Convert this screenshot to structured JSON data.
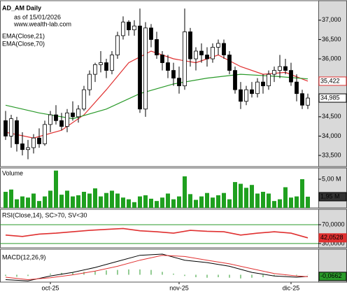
{
  "chart_data": [
    {
      "type": "candlestick",
      "title": "AD_AM Daily",
      "subtitle": "as of 15/01/2026",
      "source": "www.wealth-lab.com",
      "xlim": [
        -1,
        55.875
      ],
      "ylim": [
        33210,
        37505
      ],
      "xticks": [
        {
          "value": 8,
          "label": "oct-25"
        },
        {
          "value": 31,
          "label": "nov-25"
        },
        {
          "value": 51,
          "label": "dic-25"
        }
      ],
      "yticks": [
        {
          "value": 37000,
          "label": "37,000"
        },
        {
          "value": 36500,
          "label": "36,500"
        },
        {
          "value": 36000,
          "label": "36,000"
        },
        {
          "value": 34500,
          "label": "34,500"
        },
        {
          "value": 34000,
          "label": "34,000"
        },
        {
          "value": 33500,
          "label": "33,500"
        }
      ],
      "open": [
        34400,
        34000,
        34400,
        33800,
        33650,
        33700,
        33950,
        33800,
        34300,
        34550,
        34400,
        34250,
        34600,
        34500,
        34700,
        35200,
        35600,
        35850,
        35900,
        35700,
        36100,
        36600,
        36950,
        36750,
        36850,
        34700,
        36800,
        36500,
        36100,
        35900,
        35700,
        35500,
        35300,
        36700,
        36000,
        36200,
        36100,
        36000,
        36300,
        36400,
        36100,
        35700,
        35200,
        34900,
        35200,
        35100,
        35400,
        35300,
        35600,
        35700,
        35800,
        35700,
        35400,
        35100,
        34800
      ],
      "high": [
        34650,
        34550,
        34500,
        34100,
        33900,
        34050,
        34200,
        34400,
        34650,
        34800,
        34600,
        34700,
        34900,
        34800,
        35300,
        35700,
        35900,
        36200,
        36000,
        36200,
        36700,
        37100,
        37000,
        37000,
        37300,
        36950,
        36900,
        36700,
        36200,
        36100,
        35900,
        35800,
        37300,
        36800,
        36300,
        36400,
        36300,
        36400,
        36500,
        36500,
        36200,
        35800,
        35400,
        35300,
        35400,
        35500,
        35600,
        35700,
        35800,
        36100,
        36000,
        35900,
        35600,
        35200,
        35100
      ],
      "low": [
        33900,
        33700,
        33600,
        33500,
        33400,
        33550,
        33700,
        33750,
        34100,
        34300,
        34150,
        34100,
        34400,
        34350,
        34650,
        35050,
        35400,
        35650,
        35500,
        35600,
        36000,
        36500,
        36600,
        36600,
        34600,
        34500,
        36300,
        36000,
        35700,
        35500,
        35300,
        35100,
        35200,
        35800,
        35700,
        35900,
        35800,
        35900,
        36100,
        36000,
        35600,
        35100,
        34700,
        34800,
        35000,
        35000,
        35100,
        35200,
        35400,
        35500,
        35600,
        35300,
        34900,
        34700,
        34700
      ],
      "close": [
        34000,
        34450,
        33800,
        33650,
        33700,
        33950,
        33800,
        34300,
        34550,
        34400,
        34250,
        34600,
        34500,
        34700,
        35200,
        35600,
        35850,
        35900,
        35700,
        36100,
        36600,
        36950,
        36750,
        36850,
        34700,
        36800,
        36500,
        36100,
        35900,
        35700,
        35500,
        35300,
        36700,
        36000,
        36200,
        36100,
        36000,
        36300,
        36400,
        36100,
        35700,
        35200,
        34900,
        35200,
        35100,
        35400,
        35300,
        35600,
        35700,
        35800,
        35700,
        35400,
        35100,
        34800,
        34985
      ],
      "close_label": "34,985",
      "series": [
        {
          "name": "EMA(Close,21)",
          "color": "#e03030",
          "x": [
            0,
            5,
            10,
            14,
            18,
            22,
            26,
            30,
            34,
            38,
            42,
            46,
            50,
            54
          ],
          "values": [
            34100,
            33950,
            34150,
            34550,
            35200,
            35900,
            36200,
            36000,
            35900,
            36100,
            35800,
            35600,
            35650,
            35422
          ],
          "last_label": "35,422"
        },
        {
          "name": "EMA(Close,70)",
          "color": "#2a9a2a",
          "x": [
            0,
            6,
            12,
            18,
            24,
            30,
            36,
            42,
            48,
            54
          ],
          "values": [
            34800,
            34600,
            34450,
            34700,
            35100,
            35350,
            35500,
            35600,
            35550,
            35480
          ]
        }
      ]
    },
    {
      "type": "bar",
      "title": "Volume",
      "color": "#1fa01f",
      "ylim": [
        0,
        6950000
      ],
      "yticks": [
        {
          "value": 5000000,
          "label": "5,00 M"
        }
      ],
      "values": [
        2800000,
        3200000,
        1500000,
        2000000,
        1800000,
        2500000,
        1200000,
        2000000,
        3000000,
        6500000,
        2300000,
        3000000,
        2000000,
        2200000,
        2800000,
        2500000,
        3400000,
        2000000,
        2600000,
        3000000,
        2500000,
        1800000,
        1500000,
        1000000,
        2000000,
        2200000,
        1600000,
        1200000,
        1800000,
        2500000,
        1500000,
        2000000,
        5500000,
        2400000,
        1400000,
        2000000,
        2600000,
        1800000,
        2200000,
        2600000,
        1500000,
        4500000,
        4200000,
        3500000,
        4000000,
        2500000,
        2800000,
        2500000,
        1200000,
        1500000,
        3600000,
        1800000,
        2000000,
        5000000,
        1950000
      ],
      "last_label": "1,95 M"
    },
    {
      "type": "line",
      "title": "RSI(Close,14), SC>70, SV<30",
      "ylim": [
        20.9,
        102.7
      ],
      "band_color": "#2a9a2a",
      "yticks": [
        {
          "value": 70,
          "label": "70,0000"
        },
        {
          "value": 30,
          "label": "30,0000"
        }
      ],
      "series": [
        {
          "color": "#e03030",
          "x": [
            0,
            3,
            6,
            9,
            12,
            15,
            18,
            21,
            24,
            27,
            30,
            33,
            36,
            39,
            42,
            45,
            48,
            51,
            54
          ],
          "values": [
            48,
            45,
            50,
            52,
            55,
            58,
            60,
            62,
            57,
            55,
            52,
            58,
            56,
            55,
            48,
            52,
            55,
            52,
            42.0528
          ],
          "last_label": "42,0528"
        }
      ]
    },
    {
      "type": "macd",
      "title": "MACD(12,26,9)",
      "ylim": [
        -0.3,
        1.05
      ],
      "series": [
        {
          "color": "#000000",
          "x": [
            0,
            4,
            8,
            12,
            16,
            20,
            24,
            28,
            32,
            36,
            40,
            44,
            48,
            52,
            54
          ],
          "values": [
            -0.2,
            -0.25,
            -0.05,
            0.1,
            0.3,
            0.55,
            0.8,
            0.85,
            0.6,
            0.5,
            0.35,
            0.1,
            -0.05,
            -0.1,
            -0.0662
          ],
          "last_label": "-0,0662"
        },
        {
          "color": "#e03030",
          "x": [
            0,
            4,
            8,
            12,
            16,
            20,
            24,
            28,
            32,
            36,
            40,
            44,
            48,
            52,
            54
          ],
          "values": [
            -0.1,
            -0.2,
            -0.12,
            0,
            0.15,
            0.35,
            0.6,
            0.8,
            0.75,
            0.6,
            0.45,
            0.25,
            0.05,
            -0.05,
            -0.08
          ]
        }
      ],
      "histogram": {
        "color": "#2a9a2a",
        "x": [
          0,
          2,
          4,
          6,
          8,
          10,
          12,
          14,
          16,
          18,
          20,
          22,
          24,
          26,
          28,
          30,
          32,
          34,
          36,
          38,
          40,
          42,
          44,
          46,
          48,
          50,
          52,
          54
        ],
        "values": [
          -0.05,
          -0.08,
          -0.05,
          0,
          0.05,
          0.08,
          0.1,
          0.12,
          0.15,
          0.18,
          0.2,
          0.22,
          0.22,
          0.2,
          0.12,
          0.05,
          -0.05,
          -0.1,
          -0.12,
          -0.1,
          -0.12,
          -0.15,
          -0.12,
          -0.1,
          -0.05,
          -0.02,
          -0.03,
          0.01
        ]
      }
    }
  ]
}
